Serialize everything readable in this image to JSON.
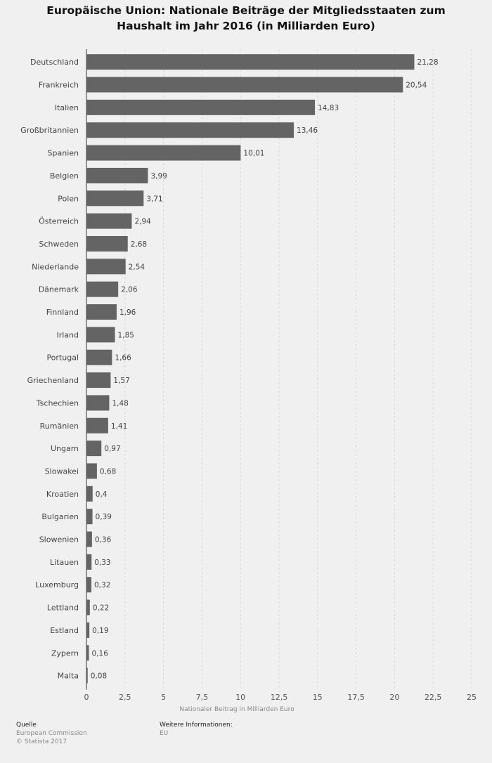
{
  "chart_data": {
    "type": "bar",
    "orientation": "horizontal",
    "title_lines": [
      "Europäische Union: Nationale Beiträge der Mitgliedsstaaten zum",
      "Haushalt im Jahr 2016 (in Milliarden Euro)"
    ],
    "xlabel": "Nationaler Beitrag in Milliarden Euro",
    "xlim": [
      0,
      25
    ],
    "xticks": [
      "0",
      "2,5",
      "5",
      "7,5",
      "10",
      "12,5",
      "15",
      "17,5",
      "20",
      "22,5",
      "25"
    ],
    "grid": true,
    "bar_color": "#646464",
    "categories": [
      "Deutschland",
      "Frankreich",
      "Italien",
      "Großbritannien",
      "Spanien",
      "Belgien",
      "Polen",
      "Österreich",
      "Schweden",
      "Niederlande",
      "Dänemark",
      "Finnland",
      "Irland",
      "Portugal",
      "Griechenland",
      "Tschechien",
      "Rumänien",
      "Ungarn",
      "Slowakei",
      "Kroatien",
      "Bulgarien",
      "Slowenien",
      "Litauen",
      "Luxemburg",
      "Lettland",
      "Estland",
      "Zypern",
      "Malta"
    ],
    "values": [
      21.28,
      20.54,
      14.83,
      13.46,
      10.01,
      3.99,
      3.71,
      2.94,
      2.68,
      2.54,
      2.06,
      1.96,
      1.85,
      1.66,
      1.57,
      1.48,
      1.41,
      0.97,
      0.68,
      0.4,
      0.39,
      0.36,
      0.33,
      0.32,
      0.22,
      0.19,
      0.16,
      0.08
    ],
    "value_labels": [
      "21,28",
      "20,54",
      "14,83",
      "13,46",
      "10,01",
      "3,99",
      "3,71",
      "2,94",
      "2,68",
      "2,54",
      "2,06",
      "1,96",
      "1,85",
      "1,66",
      "1,57",
      "1,48",
      "1,41",
      "0,97",
      "0,68",
      "0,4",
      "0,39",
      "0,36",
      "0,33",
      "0,32",
      "0,22",
      "0,19",
      "0,16",
      "0,08"
    ]
  },
  "footer": {
    "source_heading": "Quelle",
    "source_name": "European Commission",
    "copyright": "© Statista 2017",
    "info_heading": "Weitere Informationen:",
    "info_value": "EU"
  }
}
